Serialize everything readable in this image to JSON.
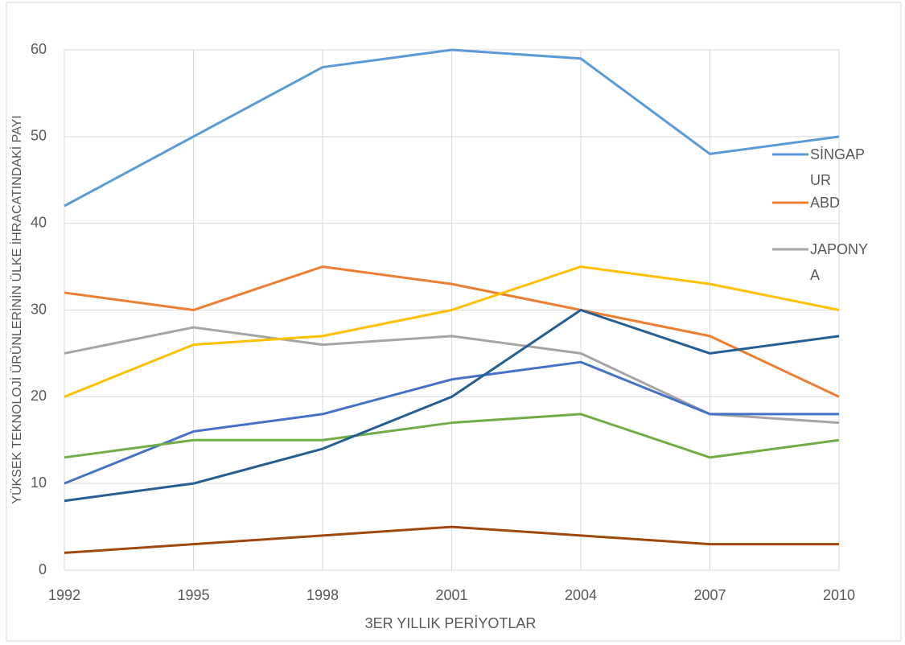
{
  "chart_data": {
    "type": "line",
    "x_label": "3ER YILLIK PERİYOTLAR",
    "y_label": "YÜKSEK TEKNOLOJİ ÜRÜNLERİNİN ÜLKE İHRACATINDAKİ PAYI",
    "x": [
      1992,
      1995,
      1998,
      2001,
      2004,
      2007,
      2010
    ],
    "xlim": [
      1992,
      2010
    ],
    "xticks": [
      1992,
      1995,
      1998,
      2001,
      2004,
      2007,
      2010
    ],
    "ylim": [
      0,
      60
    ],
    "yticks": [
      0,
      10,
      20,
      30,
      40,
      50,
      60
    ],
    "grid": true,
    "legend": "right",
    "series": [
      {
        "name": "SİNGAPUR",
        "color": "#5b9bd5",
        "values": [
          42,
          50,
          58,
          60,
          59,
          48,
          50
        ]
      },
      {
        "name": "ABD",
        "color": "#ed7d31",
        "values": [
          32,
          30,
          35,
          33,
          30,
          27,
          20
        ]
      },
      {
        "name": "JAPONYA",
        "color": "#a5a5a5",
        "values": [
          25,
          28,
          26,
          27,
          25,
          18,
          17
        ]
      },
      {
        "color": "#ffc000",
        "values": [
          20,
          26,
          27,
          30,
          35,
          33,
          30
        ]
      },
      {
        "color": "#4472c4",
        "values": [
          10,
          16,
          18,
          22,
          24,
          18,
          18
        ]
      },
      {
        "color": "#70ad47",
        "values": [
          13,
          15,
          15,
          17,
          18,
          13,
          15
        ]
      },
      {
        "color": "#255e91",
        "values": [
          8,
          10,
          14,
          20,
          30,
          25,
          27
        ]
      },
      {
        "color": "#9e480e",
        "values": [
          2,
          3,
          4,
          5,
          4,
          3,
          3
        ]
      }
    ]
  }
}
